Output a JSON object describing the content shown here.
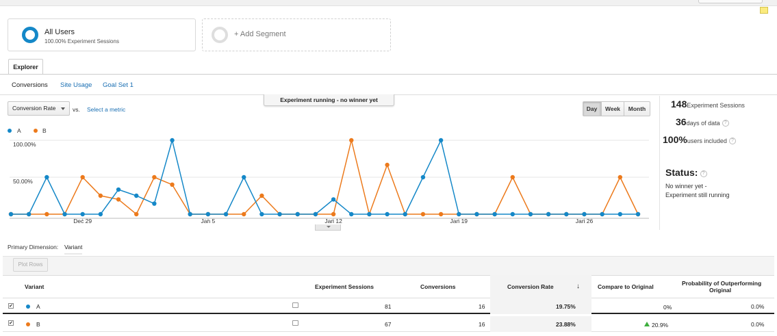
{
  "colors": {
    "variant_a": "#1588c8",
    "variant_b": "#ec7a1c",
    "link": "#1a6fb3",
    "positive": "#3dae3d"
  },
  "segments": [
    {
      "title": "All Users",
      "subtitle": "100.00% Experiment Sessions",
      "icon": "donut-icon"
    },
    {
      "title": "+ Add Segment",
      "icon": "empty-ring-icon"
    }
  ],
  "tabs": {
    "explorer": "Explorer"
  },
  "subtabs": [
    "Conversions",
    "Site Usage",
    "Goal Set 1"
  ],
  "banner": "Experiment running - no winner yet",
  "metric": {
    "selected": "Conversion Rate",
    "vs": "vs.",
    "select_metric": "Select a metric"
  },
  "period_buttons": [
    "Day",
    "Week",
    "Month"
  ],
  "active_period": "Day",
  "stats": {
    "sessions_value": "148",
    "sessions_label": "Experiment Sessions",
    "days_value": "36",
    "days_label": "days of data",
    "users_value": "100%",
    "users_label": "users included",
    "status_title": "Status:",
    "status_line1": "No winner yet -",
    "status_line2": "Experiment still running"
  },
  "chart_data": {
    "type": "line",
    "ylabels": [
      "100.00%",
      "50.00%"
    ],
    "ylim": [
      0,
      100
    ],
    "xlabels": [
      "Dec 29",
      "Jan 5",
      "Jan 12",
      "Jan 19",
      "Jan 26"
    ],
    "xlabel_index": [
      4,
      11,
      18,
      25,
      32
    ],
    "grid": true,
    "legend": "top-left",
    "series": [
      {
        "name": "A",
        "color": "#1588c8",
        "values": [
          0,
          0,
          50,
          0,
          0,
          0,
          33.3,
          25,
          14.3,
          100,
          0,
          0,
          0,
          50,
          0,
          0,
          0,
          0,
          20,
          0,
          0,
          0,
          0,
          50,
          100,
          0,
          0,
          0,
          0,
          0,
          0,
          0,
          0,
          0,
          0,
          0
        ]
      },
      {
        "name": "B",
        "color": "#ec7a1c",
        "values": [
          0,
          0,
          0,
          0,
          50,
          25,
          20,
          0,
          50,
          40,
          0,
          0,
          0,
          0,
          25,
          0,
          0,
          0,
          0,
          100,
          0,
          66.7,
          0,
          0,
          0,
          0,
          0,
          0,
          50,
          0,
          0,
          0,
          0,
          0,
          50,
          0
        ]
      }
    ]
  },
  "primary_dimension": {
    "label": "Primary Dimension:",
    "value": "Variant"
  },
  "plot_rows": "Plot Rows",
  "table": {
    "headers": {
      "variant": "Variant",
      "sessions": "Experiment Sessions",
      "conversions": "Conversions",
      "rate": "Conversion Rate",
      "compare": "Compare to Original",
      "prob_line1": "Probability of Outperforming",
      "prob_line2": "Original",
      "sort_arrow": "↓"
    },
    "rows": [
      {
        "variant": "A",
        "sessions": "81",
        "conversions": "16",
        "rate": "19.75%",
        "compare": "0%",
        "probability": "0.0%",
        "checked": "✔"
      },
      {
        "variant": "B",
        "sessions": "67",
        "conversions": "16",
        "rate": "23.88%",
        "compare": "20.9%",
        "probability": "0.0%",
        "checked": "✔"
      }
    ]
  }
}
